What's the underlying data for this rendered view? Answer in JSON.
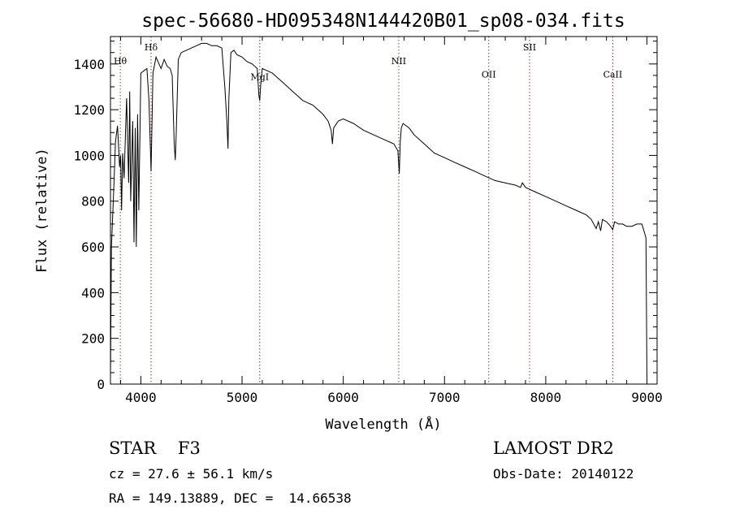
{
  "chart_data": {
    "type": "line",
    "title": "spec-56680-HD095348N144420B01_sp08-034.fits",
    "xlabel": "Wavelength (Å)",
    "ylabel": "Flux (relative)",
    "xlim": [
      3700,
      9100
    ],
    "ylim": [
      0,
      1520
    ],
    "xticks": [
      "4000",
      "5000",
      "6000",
      "7000",
      "8000",
      "9000"
    ],
    "yticks": [
      "0",
      "200",
      "400",
      "600",
      "800",
      "1000",
      "1200",
      "1400"
    ],
    "line_color": "#000000",
    "marker_color": "#b22222",
    "grid": false,
    "series": [
      {
        "x": [
          3700,
          3710,
          3730,
          3750,
          3770,
          3790,
          3800,
          3810,
          3820,
          3835,
          3850,
          3860,
          3870,
          3880,
          3890,
          3900,
          3920,
          3933,
          3945,
          3955,
          3968,
          3980,
          4000,
          4030,
          4060,
          4080,
          4101,
          4120,
          4150,
          4180,
          4200,
          4230,
          4260,
          4290,
          4310,
          4330,
          4340,
          4350,
          4370,
          4400,
          4450,
          4500,
          4550,
          4600,
          4650,
          4700,
          4750,
          4800,
          4830,
          4850,
          4861,
          4870,
          4890,
          4920,
          4950,
          5000,
          5050,
          5100,
          5150,
          5167,
          5175,
          5183,
          5200,
          5250,
          5300,
          5350,
          5400,
          5450,
          5500,
          5550,
          5600,
          5650,
          5700,
          5750,
          5800,
          5850,
          5880,
          5893,
          5905,
          5950,
          6000,
          6100,
          6200,
          6300,
          6400,
          6500,
          6540,
          6553,
          6563,
          6573,
          6590,
          6650,
          6700,
          6800,
          6900,
          7000,
          7100,
          7200,
          7300,
          7400,
          7500,
          7600,
          7700,
          7750,
          7770,
          7800,
          7900,
          8000,
          8100,
          8200,
          8300,
          8400,
          8450,
          8498,
          8520,
          8542,
          8560,
          8600,
          8640,
          8662,
          8680,
          8720,
          8760,
          8800,
          8850,
          8900,
          8950,
          8990,
          9000
        ],
        "values": [
          30,
          600,
          820,
          1060,
          1130,
          950,
          1000,
          760,
          1010,
          900,
          1120,
          1250,
          1050,
          880,
          1280,
          800,
          1150,
          620,
          1120,
          600,
          1180,
          760,
          1360,
          1370,
          1380,
          1240,
          930,
          1360,
          1430,
          1400,
          1380,
          1420,
          1390,
          1380,
          1350,
          1050,
          980,
          1100,
          1420,
          1450,
          1460,
          1470,
          1480,
          1490,
          1490,
          1480,
          1480,
          1470,
          1300,
          1150,
          1030,
          1250,
          1450,
          1460,
          1440,
          1430,
          1410,
          1400,
          1380,
          1260,
          1240,
          1300,
          1380,
          1370,
          1360,
          1340,
          1320,
          1300,
          1280,
          1260,
          1240,
          1230,
          1220,
          1200,
          1180,
          1150,
          1110,
          1050,
          1120,
          1150,
          1160,
          1140,
          1110,
          1090,
          1070,
          1050,
          1020,
          920,
          1060,
          1120,
          1140,
          1120,
          1090,
          1050,
          1010,
          990,
          970,
          950,
          930,
          910,
          890,
          880,
          870,
          860,
          880,
          860,
          840,
          820,
          800,
          780,
          760,
          740,
          720,
          680,
          710,
          670,
          720,
          710,
          690,
          675,
          710,
          700,
          700,
          690,
          690,
          700,
          700,
          640,
          30
        ]
      }
    ],
    "lines": [
      {
        "label": "Hθ",
        "x": 3797,
        "label_y": 1400
      },
      {
        "label": "Hδ",
        "x": 4101,
        "label_y": 1460
      },
      {
        "label": "MgI",
        "x": 5175,
        "label_y": 1330
      },
      {
        "label": "NII",
        "x": 6548,
        "label_y": 1400
      },
      {
        "label": "OII",
        "x": 7437,
        "label_y": 1340
      },
      {
        "label": "SII",
        "x": 7840,
        "label_y": 1460
      },
      {
        "label": "CaII",
        "x": 8662,
        "label_y": 1340
      }
    ]
  },
  "footer": {
    "object": "STAR    F3",
    "survey": "LAMOST DR2",
    "cz": "cz = 27.6 ± 56.1 km/s",
    "obs_date": "Obs-Date: 20140122",
    "radec": "RA = 149.13889, DEC =  14.66538"
  }
}
